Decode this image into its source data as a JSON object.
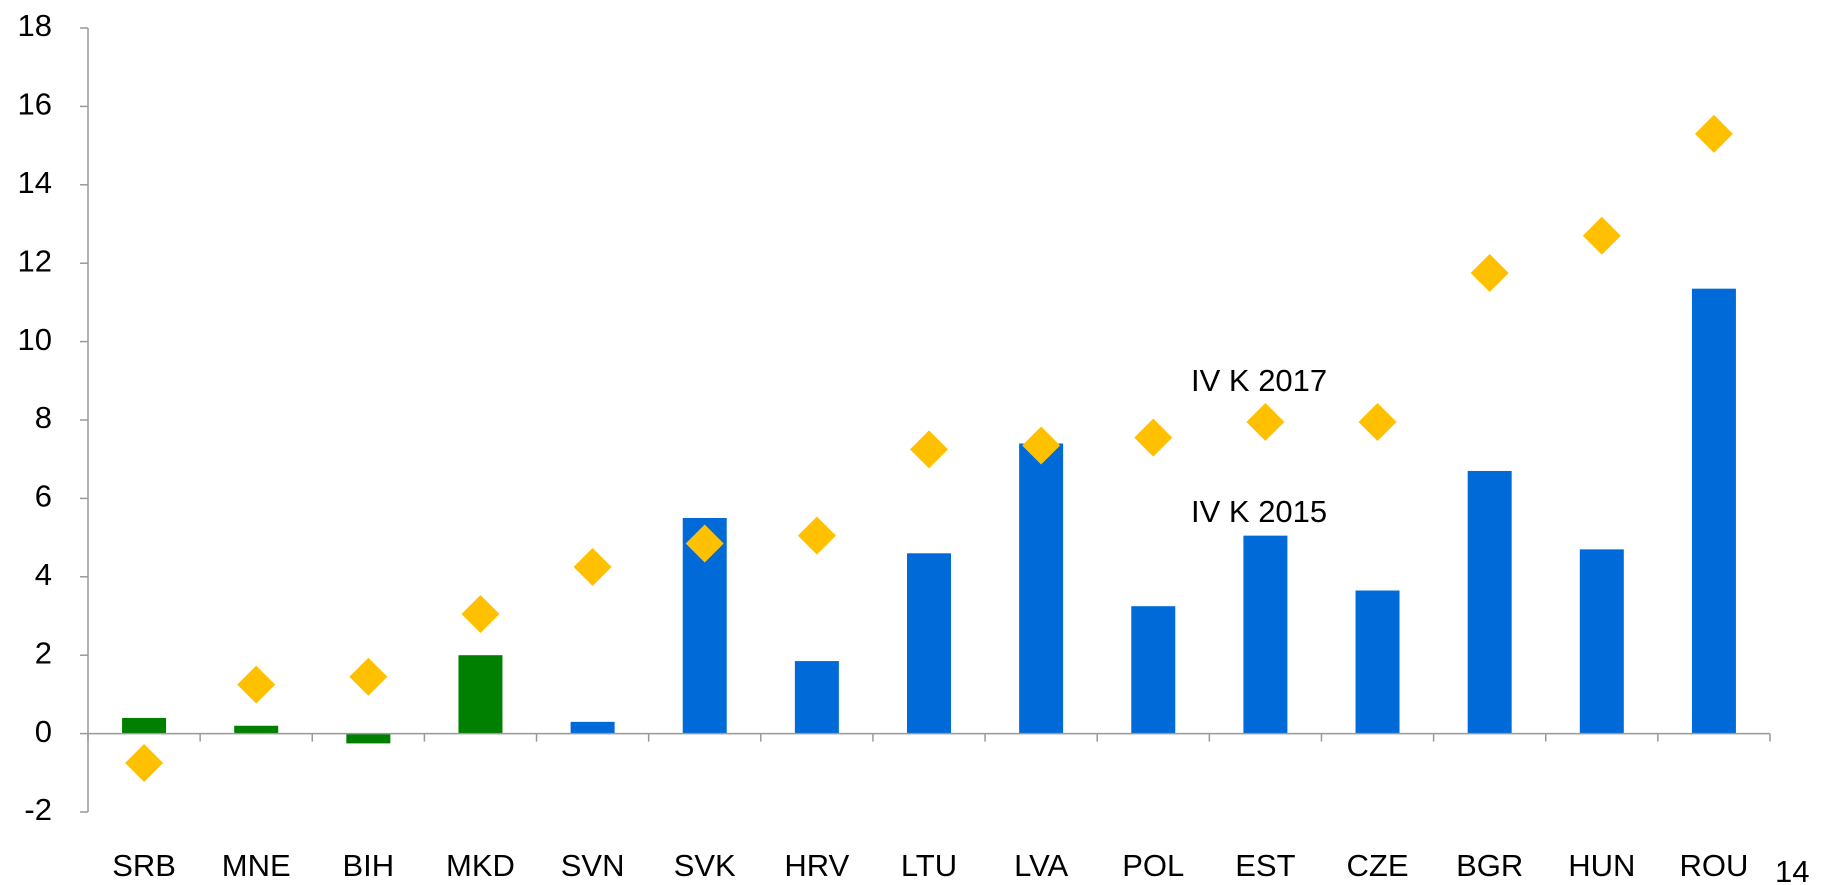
{
  "chart_data": {
    "type": "bar",
    "categories": [
      "SRB",
      "MNE",
      "BIH",
      "MKD",
      "SVN",
      "SVK",
      "HRV",
      "LTU",
      "LVA",
      "POL",
      "EST",
      "CZE",
      "BGR",
      "HUN",
      "ROU"
    ],
    "series": [
      {
        "name": "IV K 2015",
        "type": "bar",
        "colors": [
          "#008000",
          "#008000",
          "#008000",
          "#008000",
          "#006ad8",
          "#006ad8",
          "#006ad8",
          "#006ad8",
          "#006ad8",
          "#006ad8",
          "#006ad8",
          "#006ad8",
          "#006ad8",
          "#006ad8",
          "#006ad8"
        ],
        "values": [
          0.4,
          0.2,
          -0.25,
          2.0,
          0.3,
          5.5,
          1.85,
          4.6,
          7.4,
          3.25,
          5.05,
          3.65,
          6.7,
          4.7,
          11.35
        ]
      },
      {
        "name": "IV K 2017",
        "type": "scatter",
        "color": "#ffc000",
        "values": [
          -0.75,
          1.25,
          1.45,
          3.05,
          4.25,
          4.85,
          5.05,
          7.25,
          7.35,
          7.55,
          7.95,
          7.95,
          11.75,
          12.7,
          15.3
        ]
      }
    ],
    "ylim": [
      -2,
      18
    ],
    "yticks": [
      -2,
      0,
      2,
      4,
      6,
      8,
      10,
      12,
      14,
      16,
      18
    ],
    "grid": false
  },
  "page_number": "14"
}
